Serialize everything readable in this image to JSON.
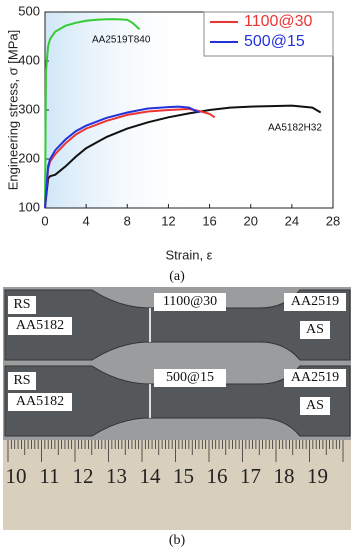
{
  "chart_data": {
    "type": "line",
    "x_label": "Strain, ε",
    "y_label": "Engineering stress, σ [MPa]",
    "xlim": [
      0,
      28
    ],
    "xticks": [
      0,
      4,
      8,
      12,
      16,
      20,
      24,
      28
    ],
    "ylim": [
      100,
      500
    ],
    "yticks": [
      100,
      200,
      300,
      400,
      500
    ],
    "legend": "upper right",
    "series": [
      {
        "name": "AA2519T840",
        "color": "#33cc33",
        "in_legend": false,
        "x": [
          0,
          0.1,
          0.3,
          0.5,
          1,
          2,
          3,
          4,
          5,
          6,
          7,
          8,
          8.5,
          9.2
        ],
        "values": [
          100,
          380,
          430,
          445,
          460,
          472,
          478,
          482,
          484,
          485,
          485,
          484,
          478,
          465
        ]
      },
      {
        "name": "AA5182H32",
        "color": "#111111",
        "in_legend": false,
        "x": [
          0,
          0.3,
          0.5,
          1,
          2,
          3,
          4,
          6,
          8,
          10,
          12,
          14,
          16,
          18,
          20,
          22,
          24,
          26,
          26.8
        ],
        "values": [
          100,
          160,
          165,
          168,
          185,
          205,
          222,
          245,
          262,
          275,
          285,
          293,
          300,
          305,
          307,
          308,
          309,
          305,
          295
        ]
      },
      {
        "name": "1100@30",
        "color": "#ee3333",
        "in_legend": true,
        "x": [
          0,
          0.3,
          0.5,
          1,
          2,
          3,
          4,
          6,
          8,
          10,
          12,
          14,
          15,
          16,
          16.5
        ],
        "values": [
          100,
          180,
          195,
          210,
          232,
          250,
          262,
          278,
          290,
          297,
          300,
          302,
          298,
          292,
          285
        ]
      },
      {
        "name": "500@15",
        "color": "#2233dd",
        "in_legend": true,
        "x": [
          0,
          0.3,
          0.5,
          1,
          2,
          3,
          4,
          6,
          8,
          10,
          12,
          13,
          14,
          15
        ],
        "values": [
          100,
          185,
          200,
          218,
          240,
          257,
          268,
          284,
          295,
          303,
          306,
          307,
          305,
          295
        ]
      }
    ]
  },
  "figure": {
    "panel_labels": [
      "(a)",
      "(b)"
    ],
    "photo": {
      "specimens": [
        {
          "left_side": "RS",
          "left_alloy": "AA5182",
          "params": "1100@30",
          "params_color": "#ee2222",
          "right_alloy": "AA2519",
          "right_side": "AS"
        },
        {
          "left_side": "RS",
          "left_alloy": "AA5182",
          "params": "500@15",
          "params_color": "#2233cc",
          "right_alloy": "AA2519",
          "right_side": "AS"
        }
      ],
      "ruler": [
        10,
        11,
        12,
        13,
        14,
        15,
        16,
        17,
        18,
        19
      ]
    }
  }
}
